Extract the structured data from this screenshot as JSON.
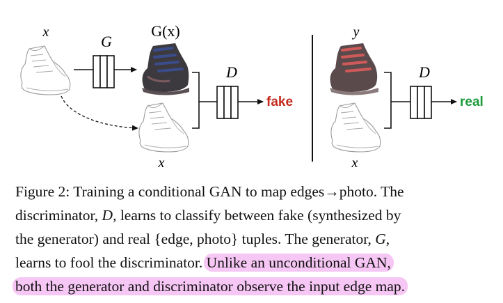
{
  "figure": {
    "left": {
      "input_label": "x",
      "generator_label": "G",
      "output_label": "G(x)",
      "condition_label": "x",
      "discriminator_label": "D",
      "result_label": "fake",
      "result_color": "#c62a1f"
    },
    "right": {
      "photo_label": "y",
      "condition_label": "x",
      "discriminator_label": "D",
      "result_label": "real",
      "result_color": "#1a9a3a"
    },
    "photo_colors": {
      "generated_boot": "#3d3a3f",
      "generated_laces": "#3a4c8a",
      "real_boot": "#5b4a4c",
      "real_laces": "#d05a5a"
    }
  },
  "caption": {
    "line1_a": "Figure 2: Training a conditional GAN to map edges",
    "line1_arrow": "→",
    "line1_b": "photo.  The",
    "line2_a": "discriminator, ",
    "line2_var": "D",
    "line2_b": ", learns to classify between fake (synthesized by",
    "line3": "the generator) and real {edge, photo} tuples.  The generator, ",
    "line3_var": "G",
    "line3_end": ",",
    "line4_plain": "learns to fool the discriminator.  ",
    "line4_highlight": "Unlike an unconditional GAN,",
    "line5_highlight": "both the generator and discriminator observe the input edge map.",
    "highlight_color": "#f6c6f4"
  }
}
